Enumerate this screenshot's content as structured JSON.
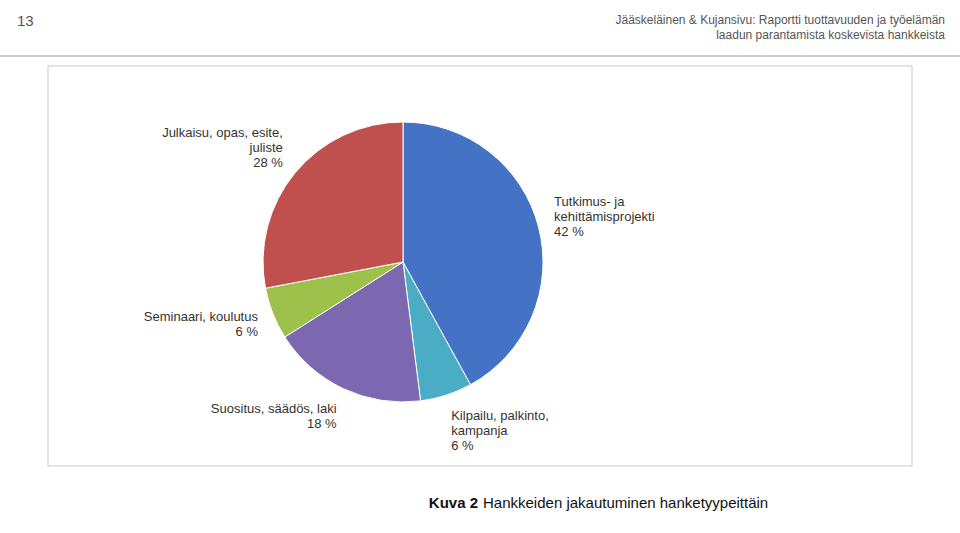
{
  "chart_data": {
    "type": "pie",
    "title": "Kuva 2",
    "subtitle": "Hankkeiden jakautuminen hanketyypeittäin",
    "annotations": [
      "13",
      "Jääskeläinen & Kujansivu: Raportti tuottavuuden ja työelämän\nlaadun parantamista koskevista hankkeista"
    ],
    "categories": [
      "Tutkimus- ja\nkehittämisprojekti",
      "Kilpailu, palkinto,\nkampanja",
      "Suositus, säädös, laki",
      "Seminaari, koulutus",
      "Julkaisu, opas, esite,\njuliste"
    ],
    "values": [
      42,
      6,
      18,
      6,
      28
    ],
    "value_labels": [
      "42 %",
      "6 %",
      "18 %",
      "6 %",
      "28 %"
    ],
    "colors": [
      "#4472C4",
      "#4BACC6",
      "#7B68B0",
      "#9DC14B",
      "#C0504D"
    ],
    "data_labels": true
  }
}
